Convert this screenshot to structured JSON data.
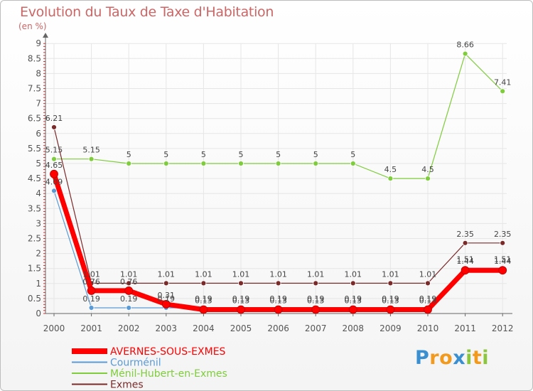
{
  "title": "Evolution du Taux de Taxe d'Habitation",
  "subtitle": "(en %)",
  "logo": {
    "letters": [
      "P",
      "r",
      "o",
      "x",
      "i",
      "t",
      "i"
    ],
    "colors": [
      "#3a8fd0",
      "#f19a1e",
      "#f19a1e",
      "#3a8fd0",
      "#8cc63f",
      "#f19a1e",
      "#8cc63f"
    ]
  },
  "chart_data": {
    "type": "line",
    "x": [
      "2000",
      "2001",
      "2002",
      "2003",
      "2004",
      "2005",
      "2006",
      "2007",
      "2008",
      "2009",
      "2010",
      "2011",
      "2012"
    ],
    "ylim": [
      0,
      9
    ],
    "yticks": [
      "0",
      "0.5",
      "1",
      "1.5",
      "2",
      "2.5",
      "3",
      "3.5",
      "4",
      "4.5",
      "5",
      "5.5",
      "6",
      "6.5",
      "7",
      "7.5",
      "8",
      "8.5",
      "9"
    ],
    "series": [
      {
        "name": "AVERNES-SOUS-EXMES",
        "color": "#ff0000",
        "values": [
          4.65,
          0.76,
          0.76,
          0.31,
          0.13,
          0.13,
          0.13,
          0.13,
          0.13,
          0.13,
          0.13,
          1.44,
          1.44
        ],
        "labels": [
          "4.65",
          "0.76",
          "0.76",
          "0.31",
          "0.13",
          "0.13",
          "0.13",
          "0.13",
          "0.13",
          "0.13",
          "0.13",
          "1.44",
          "1.44"
        ]
      },
      {
        "name": "Courménil",
        "color": "#5b9bd5",
        "values": [
          4.09,
          0.19,
          0.19,
          0.19,
          0.19,
          0.19,
          0.19,
          0.19,
          0.19,
          0.19,
          0.19,
          1.51,
          1.51
        ],
        "labels": [
          "4.09",
          "0.19",
          "0.19",
          "0.19",
          "0.19",
          "0.19",
          "0.19",
          "0.19",
          "0.19",
          "0.19",
          "0.19",
          "1.51",
          "1.51"
        ]
      },
      {
        "name": "Ménil-Hubert-en-Exmes",
        "color": "#7fcc3c",
        "values": [
          5.15,
          5.15,
          5,
          5,
          5,
          5,
          5,
          5,
          5,
          4.5,
          4.5,
          8.66,
          7.41
        ],
        "labels": [
          "5.15",
          "5.15",
          "5",
          "5",
          "5",
          "5",
          "5",
          "5",
          "5",
          "4.5",
          "4.5",
          "8.66",
          "7.41"
        ]
      },
      {
        "name": "Exmes",
        "color": "#7b2a2a",
        "values": [
          6.21,
          1.01,
          1.01,
          1.01,
          1.01,
          1.01,
          1.01,
          1.01,
          1.01,
          1.01,
          1.01,
          2.35,
          2.35
        ],
        "labels": [
          "6.21",
          "1.01",
          "1.01",
          "1.01",
          "1.01",
          "1.01",
          "1.01",
          "1.01",
          "1.01",
          "1.01",
          "1.01",
          "2.35",
          "2.35"
        ]
      }
    ]
  }
}
